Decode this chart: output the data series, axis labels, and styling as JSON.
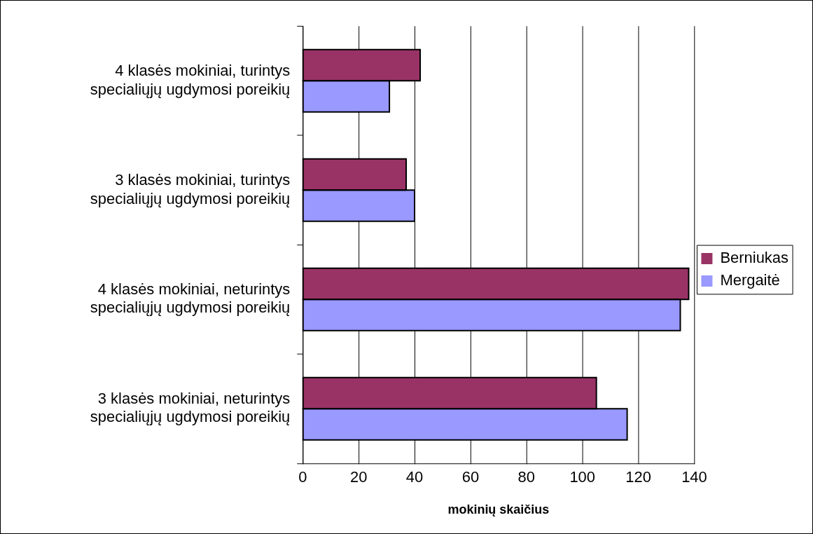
{
  "chart_data": {
    "type": "bar",
    "orientation": "horizontal",
    "xlabel": "mokinių skaičius",
    "categories": [
      "4 klasės mokiniai, turintys specialiųjų ugdymosi poreikių",
      "3 klasės mokiniai, turintys specialiųjų ugdymosi poreikių",
      "4 klasės mokiniai, neturintys specialiųjų ugdymosi poreikių",
      "3 klasės mokiniai, neturintys specialiųjų ugdymosi poreikių"
    ],
    "series": [
      {
        "name": "Berniukas",
        "color": "#993366",
        "values": [
          42,
          37,
          138,
          105
        ]
      },
      {
        "name": "Mergaitė",
        "color": "#9999ff",
        "values": [
          31,
          40,
          135,
          116
        ]
      }
    ],
    "xlim": [
      0,
      140
    ],
    "xticks": [
      0,
      20,
      40,
      60,
      80,
      100,
      120,
      140
    ],
    "grid": "x",
    "legend": "right"
  }
}
